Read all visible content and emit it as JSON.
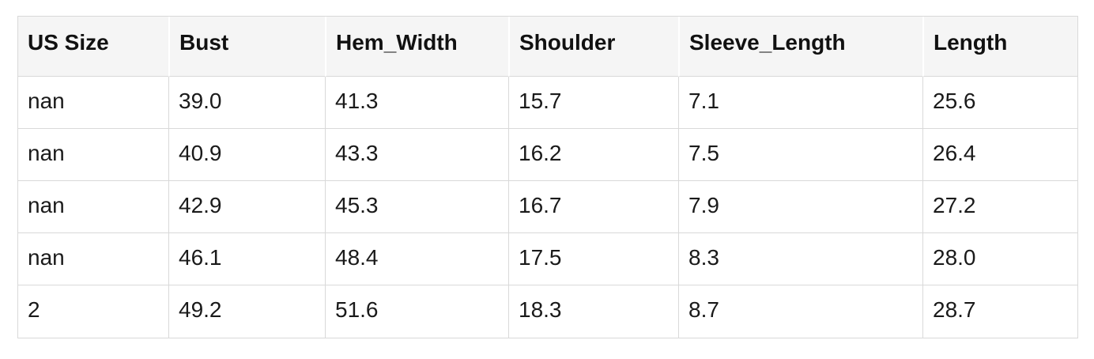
{
  "table": {
    "columns": [
      "US Size",
      "Bust",
      "Hem_Width",
      "Shoulder",
      "Sleeve_Length",
      "Length"
    ],
    "rows": [
      [
        "nan",
        "39.0",
        "41.3",
        "15.7",
        "7.1",
        "25.6"
      ],
      [
        "nan",
        "40.9",
        "43.3",
        "16.2",
        "7.5",
        "26.4"
      ],
      [
        "nan",
        "42.9",
        "45.3",
        "16.7",
        "7.9",
        "27.2"
      ],
      [
        "nan",
        "46.1",
        "48.4",
        "17.5",
        "8.3",
        "28.0"
      ],
      [
        "2",
        "49.2",
        "51.6",
        "18.3",
        "8.7",
        "28.7"
      ]
    ]
  },
  "colors": {
    "header_background": "#f5f5f5",
    "grid_border": "#d9d9d9",
    "header_separator": "#ffffff",
    "header_text": "#111111",
    "cell_text": "#1a1a1a",
    "page_background": "#ffffff"
  },
  "chart_data": {
    "type": "table",
    "title": "",
    "columns": [
      "US Size",
      "Bust",
      "Hem_Width",
      "Shoulder",
      "Sleeve_Length",
      "Length"
    ],
    "rows": [
      [
        "nan",
        39.0,
        41.3,
        15.7,
        7.1,
        25.6
      ],
      [
        "nan",
        40.9,
        43.3,
        16.2,
        7.5,
        26.4
      ],
      [
        "nan",
        42.9,
        45.3,
        16.7,
        7.9,
        27.2
      ],
      [
        "nan",
        46.1,
        48.4,
        17.5,
        8.3,
        28.0
      ],
      [
        "2",
        49.2,
        51.6,
        18.3,
        8.7,
        28.7
      ]
    ]
  }
}
